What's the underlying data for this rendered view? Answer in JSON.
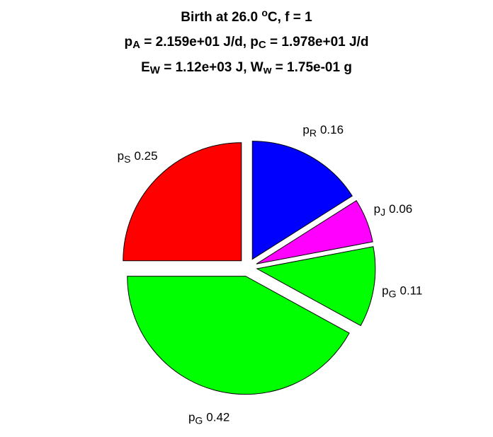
{
  "chart_data": {
    "type": "pie",
    "title": [
      [
        {
          "text": "Birth at 26.0 "
        },
        {
          "text": "o",
          "sup": true
        },
        {
          "text": "C, f = 1"
        }
      ],
      [
        {
          "text": "p"
        },
        {
          "text": "A",
          "sub": true
        },
        {
          "text": " = 2.159e+01 J/d, p"
        },
        {
          "text": "C",
          "sub": true
        },
        {
          "text": " = 1.978e+01 J/d"
        }
      ],
      [
        {
          "text": "E"
        },
        {
          "text": "W",
          "sub": true
        },
        {
          "text": " = 1.12e+03 J, W"
        },
        {
          "text": "w",
          "sub": true
        },
        {
          "text": " = 1.75e-01 g"
        }
      ]
    ],
    "categories": [
      {
        "base": "p",
        "sub": "S"
      },
      {
        "base": "p",
        "sub": "G"
      },
      {
        "base": "p",
        "sub": "G"
      },
      {
        "base": "p",
        "sub": "J"
      },
      {
        "base": "p",
        "sub": "R"
      }
    ],
    "values": [
      0.25,
      0.42,
      0.11,
      0.06,
      0.16
    ],
    "colors": [
      "#ff0000",
      "#00ff00",
      "#00ff00",
      "#ff00ff",
      "#0000ff"
    ],
    "explode": true
  }
}
